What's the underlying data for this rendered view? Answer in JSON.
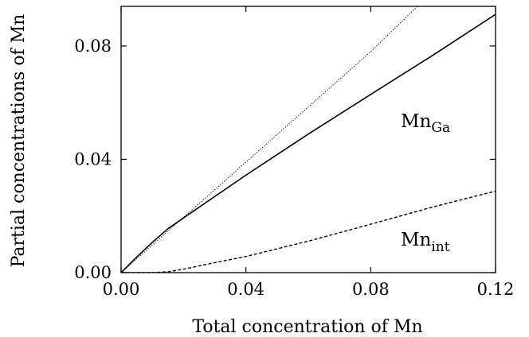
{
  "chart_data": {
    "type": "line",
    "xlabel": "Total concentration of Mn",
    "ylabel": "Partial concentrations of Mn",
    "xlim": [
      0.0,
      0.12
    ],
    "ylim": [
      0.0,
      0.094
    ],
    "x_ticks": [
      "0.00",
      "0.04",
      "0.08",
      "0.12"
    ],
    "x_tick_values": [
      0.0,
      0.04,
      0.08,
      0.12
    ],
    "y_ticks": [
      "0.00",
      "0.04",
      "0.08"
    ],
    "y_tick_values": [
      0.0,
      0.04,
      0.08
    ],
    "grid": false,
    "series": [
      {
        "label_main": "Mn",
        "label_sub": "Ga",
        "style": "solid",
        "x": [
          0.0,
          0.005,
          0.01,
          0.015,
          0.02,
          0.04,
          0.06,
          0.08,
          0.1,
          0.12
        ],
        "y": [
          0.0,
          0.0055,
          0.0107,
          0.0155,
          0.0193,
          0.0344,
          0.0489,
          0.0629,
          0.0768,
          0.0912
        ]
      },
      {
        "label_main": "Mn",
        "label_sub": "int",
        "style": "dashed",
        "x": [
          0.0,
          0.01,
          0.015,
          0.02,
          0.03,
          0.04,
          0.06,
          0.08,
          0.1,
          0.12
        ],
        "y": [
          0.0,
          0.0,
          0.0003,
          0.0012,
          0.0035,
          0.0057,
          0.0111,
          0.0171,
          0.0232,
          0.0288
        ]
      },
      {
        "style": "dotted",
        "x": [
          0.0,
          0.02,
          0.04,
          0.06,
          0.08,
          0.095
        ],
        "y": [
          0.0,
          0.0195,
          0.039,
          0.0585,
          0.078,
          0.094
        ]
      }
    ]
  }
}
